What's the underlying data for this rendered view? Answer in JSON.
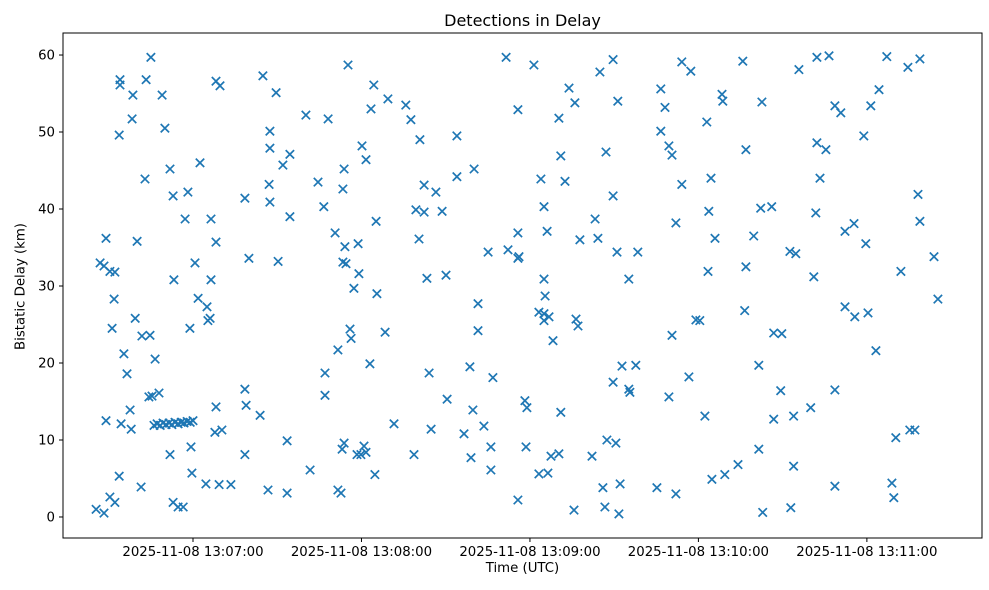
{
  "chart_data": {
    "type": "scatter",
    "title": "Detections in Delay",
    "xlabel": "Time (UTC)",
    "ylabel": "Bistatic Delay (km)",
    "marker": "x",
    "marker_color": "#1f77b4",
    "axis_color": "#000000",
    "background": "#ffffff",
    "grid": false,
    "legend": "none",
    "x_unit": "seconds after 2025-11-08 13:06:00 UTC",
    "xlim": [
      13.7,
      341.0
    ],
    "ylim": [
      -2.73,
      62.86
    ],
    "x_ticks": [
      {
        "t": 60,
        "label": "2025-11-08 13:07:00"
      },
      {
        "t": 120,
        "label": "2025-11-08 13:08:00"
      },
      {
        "t": 180,
        "label": "2025-11-08 13:09:00"
      },
      {
        "t": 240,
        "label": "2025-11-08 13:10:00"
      },
      {
        "t": 300,
        "label": "2025-11-08 13:11:00"
      }
    ],
    "y_ticks": [
      {
        "v": 0,
        "label": "0"
      },
      {
        "v": 10,
        "label": "10"
      },
      {
        "v": 20,
        "label": "20"
      },
      {
        "v": 30,
        "label": "30"
      },
      {
        "v": 40,
        "label": "40"
      },
      {
        "v": 50,
        "label": "50"
      },
      {
        "v": 60,
        "label": "60"
      }
    ],
    "points": [
      [
        45.0,
        59.7
      ],
      [
        34.0,
        56.8
      ],
      [
        34.0,
        56.1
      ],
      [
        43.3,
        56.8
      ],
      [
        68.2,
        56.6
      ],
      [
        69.6,
        56.0
      ],
      [
        84.9,
        57.3
      ],
      [
        38.6,
        54.8
      ],
      [
        49.0,
        54.8
      ],
      [
        89.6,
        55.1
      ],
      [
        38.3,
        51.7
      ],
      [
        50.0,
        50.5
      ],
      [
        33.7,
        49.6
      ],
      [
        87.4,
        50.1
      ],
      [
        87.4,
        47.9
      ],
      [
        62.5,
        46.0
      ],
      [
        51.8,
        45.2
      ],
      [
        92.0,
        45.7
      ],
      [
        42.9,
        43.9
      ],
      [
        87.1,
        43.2
      ],
      [
        52.9,
        41.7
      ],
      [
        58.2,
        42.2
      ],
      [
        78.5,
        41.4
      ],
      [
        171.5,
        59.7
      ],
      [
        115.2,
        58.7
      ],
      [
        124.4,
        56.1
      ],
      [
        129.4,
        54.3
      ],
      [
        123.4,
        53.0
      ],
      [
        135.8,
        53.5
      ],
      [
        137.6,
        51.6
      ],
      [
        100.2,
        52.2
      ],
      [
        108.1,
        51.7
      ],
      [
        140.8,
        49.0
      ],
      [
        154.0,
        49.5
      ],
      [
        120.2,
        48.2
      ],
      [
        121.6,
        46.4
      ],
      [
        94.5,
        47.1
      ],
      [
        113.8,
        45.2
      ],
      [
        104.5,
        43.5
      ],
      [
        113.4,
        42.6
      ],
      [
        142.3,
        43.1
      ],
      [
        146.5,
        42.2
      ],
      [
        154.0,
        44.2
      ],
      [
        160.1,
        45.2
      ],
      [
        181.4,
        58.7
      ],
      [
        209.6,
        59.4
      ],
      [
        204.9,
        57.8
      ],
      [
        234.1,
        59.1
      ],
      [
        237.3,
        57.9
      ],
      [
        255.8,
        59.2
      ],
      [
        193.9,
        55.7
      ],
      [
        196.0,
        53.8
      ],
      [
        211.3,
        54.0
      ],
      [
        226.6,
        55.6
      ],
      [
        228.1,
        53.2
      ],
      [
        175.7,
        52.9
      ],
      [
        190.3,
        51.8
      ],
      [
        248.4,
        54.9
      ],
      [
        248.7,
        54.0
      ],
      [
        243.0,
        51.3
      ],
      [
        226.6,
        50.1
      ],
      [
        229.5,
        48.2
      ],
      [
        230.6,
        47.0
      ],
      [
        207.1,
        47.4
      ],
      [
        191.0,
        46.9
      ],
      [
        183.9,
        43.9
      ],
      [
        192.5,
        43.6
      ],
      [
        234.1,
        43.2
      ],
      [
        244.5,
        44.0
      ],
      [
        209.6,
        41.7
      ],
      [
        282.2,
        59.7
      ],
      [
        286.5,
        59.9
      ],
      [
        275.8,
        58.1
      ],
      [
        307.1,
        59.8
      ],
      [
        314.6,
        58.4
      ],
      [
        318.9,
        59.5
      ],
      [
        262.6,
        53.9
      ],
      [
        288.6,
        53.4
      ],
      [
        290.7,
        52.5
      ],
      [
        301.4,
        53.4
      ],
      [
        304.3,
        55.5
      ],
      [
        298.9,
        49.5
      ],
      [
        282.2,
        48.6
      ],
      [
        285.4,
        47.7
      ],
      [
        256.9,
        47.7
      ],
      [
        283.3,
        44.0
      ],
      [
        318.2,
        41.9
      ],
      [
        87.4,
        40.9
      ],
      [
        57.2,
        38.7
      ],
      [
        66.4,
        38.7
      ],
      [
        94.5,
        39.0
      ],
      [
        29.0,
        36.2
      ],
      [
        40.1,
        35.8
      ],
      [
        68.2,
        35.7
      ],
      [
        26.9,
        33.0
      ],
      [
        28.3,
        32.6
      ],
      [
        30.4,
        31.9
      ],
      [
        32.2,
        31.8
      ],
      [
        60.7,
        33.0
      ],
      [
        79.9,
        33.6
      ],
      [
        90.3,
        33.2
      ],
      [
        53.2,
        30.8
      ],
      [
        66.4,
        30.8
      ],
      [
        31.9,
        28.3
      ],
      [
        61.8,
        28.4
      ],
      [
        65.0,
        27.3
      ],
      [
        65.3,
        25.5
      ],
      [
        66.1,
        25.8
      ],
      [
        39.4,
        25.8
      ],
      [
        31.2,
        24.5
      ],
      [
        58.9,
        24.5
      ],
      [
        41.8,
        23.5
      ],
      [
        44.7,
        23.6
      ],
      [
        35.4,
        21.2
      ],
      [
        46.5,
        20.5
      ],
      [
        106.6,
        40.3
      ],
      [
        125.2,
        38.4
      ],
      [
        139.4,
        39.9
      ],
      [
        142.3,
        39.6
      ],
      [
        148.7,
        39.7
      ],
      [
        110.6,
        36.9
      ],
      [
        140.5,
        36.1
      ],
      [
        114.1,
        35.1
      ],
      [
        118.8,
        35.5
      ],
      [
        175.7,
        36.9
      ],
      [
        165.1,
        34.4
      ],
      [
        172.2,
        34.7
      ],
      [
        175.7,
        33.6
      ],
      [
        113.4,
        33.1
      ],
      [
        114.5,
        32.9
      ],
      [
        119.1,
        31.6
      ],
      [
        117.3,
        29.7
      ],
      [
        125.5,
        29.0
      ],
      [
        143.3,
        31.0
      ],
      [
        150.1,
        31.4
      ],
      [
        161.5,
        27.7
      ],
      [
        115.9,
        24.4
      ],
      [
        116.3,
        23.2
      ],
      [
        128.4,
        24.0
      ],
      [
        111.6,
        21.7
      ],
      [
        161.5,
        24.2
      ],
      [
        123.0,
        19.9
      ],
      [
        158.6,
        19.5
      ],
      [
        185.0,
        40.3
      ],
      [
        186.1,
        37.1
      ],
      [
        176.1,
        33.8
      ],
      [
        203.2,
        38.7
      ],
      [
        197.8,
        36.0
      ],
      [
        204.2,
        36.2
      ],
      [
        211.0,
        34.4
      ],
      [
        218.4,
        34.4
      ],
      [
        243.7,
        39.7
      ],
      [
        232.0,
        38.2
      ],
      [
        245.9,
        36.2
      ],
      [
        243.4,
        31.9
      ],
      [
        215.2,
        30.9
      ],
      [
        185.0,
        30.9
      ],
      [
        185.4,
        28.7
      ],
      [
        183.2,
        26.6
      ],
      [
        185.0,
        26.4
      ],
      [
        186.8,
        26.0
      ],
      [
        185.0,
        25.5
      ],
      [
        196.4,
        25.7
      ],
      [
        197.1,
        24.8
      ],
      [
        188.2,
        22.9
      ],
      [
        239.1,
        25.6
      ],
      [
        240.5,
        25.5
      ],
      [
        256.5,
        26.8
      ],
      [
        230.6,
        23.6
      ],
      [
        212.8,
        19.6
      ],
      [
        217.7,
        19.7
      ],
      [
        262.2,
        40.1
      ],
      [
        266.1,
        40.3
      ],
      [
        281.8,
        39.5
      ],
      [
        292.2,
        37.1
      ],
      [
        295.4,
        38.1
      ],
      [
        318.9,
        38.4
      ],
      [
        259.7,
        36.5
      ],
      [
        256.9,
        32.5
      ],
      [
        272.6,
        34.5
      ],
      [
        274.7,
        34.2
      ],
      [
        299.6,
        35.5
      ],
      [
        323.9,
        33.8
      ],
      [
        312.1,
        31.9
      ],
      [
        281.1,
        31.2
      ],
      [
        325.3,
        28.3
      ],
      [
        292.2,
        27.3
      ],
      [
        295.7,
        26.0
      ],
      [
        300.4,
        26.5
      ],
      [
        266.8,
        23.9
      ],
      [
        269.7,
        23.8
      ],
      [
        303.2,
        21.6
      ],
      [
        36.5,
        18.6
      ],
      [
        44.3,
        15.6
      ],
      [
        45.4,
        15.7
      ],
      [
        47.9,
        16.1
      ],
      [
        37.6,
        13.9
      ],
      [
        29.0,
        12.5
      ],
      [
        34.4,
        12.1
      ],
      [
        38.0,
        11.4
      ],
      [
        78.5,
        16.6
      ],
      [
        78.9,
        14.5
      ],
      [
        68.2,
        14.3
      ],
      [
        83.9,
        13.2
      ],
      [
        67.8,
        11.0
      ],
      [
        70.3,
        11.3
      ],
      [
        93.5,
        9.9
      ],
      [
        59.3,
        9.1
      ],
      [
        51.8,
        8.1
      ],
      [
        78.5,
        8.1
      ],
      [
        59.6,
        5.7
      ],
      [
        33.7,
        5.3
      ],
      [
        64.6,
        4.3
      ],
      [
        69.3,
        4.2
      ],
      [
        73.5,
        4.2
      ],
      [
        41.5,
        3.9
      ],
      [
        86.7,
        3.5
      ],
      [
        93.5,
        3.1
      ],
      [
        30.4,
        2.6
      ],
      [
        32.2,
        1.9
      ],
      [
        25.5,
        1.0
      ],
      [
        28.3,
        0.5
      ],
      [
        52.9,
        1.9
      ],
      [
        54.7,
        1.3
      ],
      [
        56.5,
        1.3
      ],
      [
        46.1,
        11.9
      ],
      [
        47.2,
        12.1
      ],
      [
        48.3,
        11.9
      ],
      [
        49.3,
        12.2
      ],
      [
        50.4,
        12.0
      ],
      [
        51.5,
        12.2
      ],
      [
        52.5,
        12.0
      ],
      [
        53.6,
        12.3
      ],
      [
        54.7,
        12.1
      ],
      [
        55.8,
        12.3
      ],
      [
        56.8,
        12.2
      ],
      [
        57.9,
        12.4
      ],
      [
        59.0,
        12.3
      ],
      [
        60.0,
        12.5
      ],
      [
        107.0,
        18.7
      ],
      [
        144.1,
        18.7
      ],
      [
        166.8,
        18.1
      ],
      [
        107.0,
        15.8
      ],
      [
        150.5,
        15.3
      ],
      [
        159.7,
        13.9
      ],
      [
        131.6,
        12.1
      ],
      [
        144.8,
        11.4
      ],
      [
        156.5,
        10.8
      ],
      [
        163.6,
        11.8
      ],
      [
        113.8,
        9.6
      ],
      [
        113.1,
        8.8
      ],
      [
        120.9,
        9.2
      ],
      [
        118.4,
        8.1
      ],
      [
        119.8,
        8.1
      ],
      [
        121.6,
        8.4
      ],
      [
        138.7,
        8.1
      ],
      [
        159.0,
        7.7
      ],
      [
        166.1,
        9.1
      ],
      [
        166.1,
        6.1
      ],
      [
        101.7,
        6.1
      ],
      [
        124.8,
        5.5
      ],
      [
        111.6,
        3.5
      ],
      [
        112.7,
        3.1
      ],
      [
        209.6,
        17.5
      ],
      [
        215.2,
        16.6
      ],
      [
        215.6,
        16.2
      ],
      [
        236.6,
        18.2
      ],
      [
        229.5,
        15.6
      ],
      [
        178.2,
        15.1
      ],
      [
        178.9,
        14.2
      ],
      [
        191.0,
        13.6
      ],
      [
        242.3,
        13.1
      ],
      [
        178.6,
        9.1
      ],
      [
        207.4,
        10.0
      ],
      [
        210.6,
        9.6
      ],
      [
        187.5,
        7.9
      ],
      [
        190.3,
        8.2
      ],
      [
        202.1,
        7.9
      ],
      [
        183.2,
        5.6
      ],
      [
        186.4,
        5.7
      ],
      [
        206.0,
        3.8
      ],
      [
        212.1,
        4.3
      ],
      [
        254.1,
        6.8
      ],
      [
        244.8,
        4.9
      ],
      [
        249.4,
        5.5
      ],
      [
        225.2,
        3.8
      ],
      [
        232.0,
        3.0
      ],
      [
        175.7,
        2.2
      ],
      [
        195.7,
        0.9
      ],
      [
        206.7,
        1.3
      ],
      [
        211.7,
        0.4
      ],
      [
        261.5,
        19.7
      ],
      [
        269.3,
        16.4
      ],
      [
        288.6,
        16.5
      ],
      [
        280.0,
        14.2
      ],
      [
        266.8,
        12.7
      ],
      [
        273.9,
        13.1
      ],
      [
        310.3,
        10.3
      ],
      [
        315.3,
        11.3
      ],
      [
        317.1,
        11.3
      ],
      [
        261.5,
        8.8
      ],
      [
        273.9,
        6.6
      ],
      [
        288.6,
        4.0
      ],
      [
        308.9,
        4.4
      ],
      [
        309.6,
        2.5
      ],
      [
        262.9,
        0.6
      ],
      [
        272.9,
        1.2
      ]
    ]
  }
}
